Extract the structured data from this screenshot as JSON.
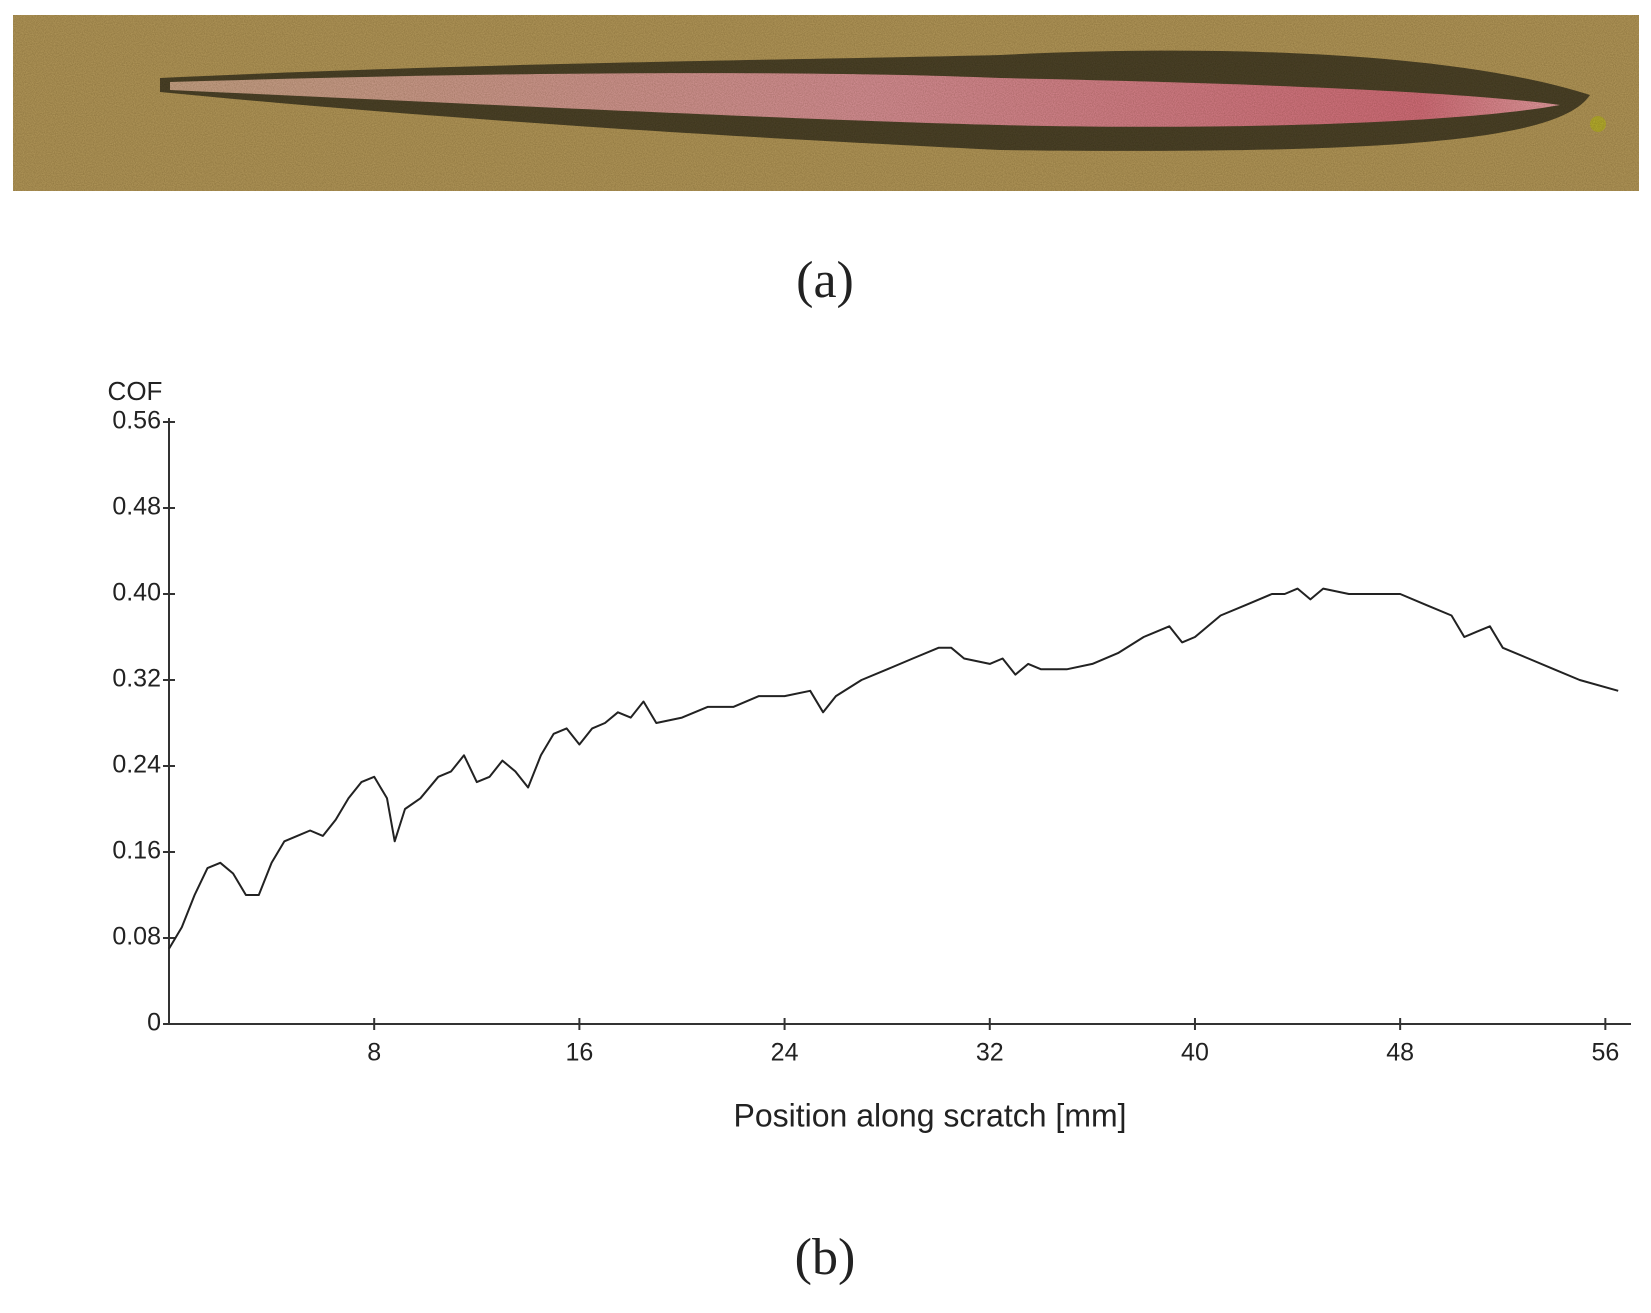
{
  "panel_labels": [
    "(a)",
    "(b)"
  ],
  "chart_data": {
    "type": "line",
    "y_label": "COF",
    "x_label": "Position along scratch [mm]",
    "color": "#222222",
    "x": [
      0,
      0.5,
      1,
      1.5,
      2,
      2.5,
      3,
      3.5,
      4,
      4.5,
      5,
      5.5,
      6,
      6.5,
      7,
      7.5,
      8,
      8.5,
      8.8,
      9.2,
      9.8,
      10.5,
      11,
      11.5,
      12,
      12.5,
      13,
      13.5,
      14,
      14.5,
      15,
      15.5,
      16,
      16.5,
      17,
      17.5,
      18,
      18.5,
      19,
      20,
      21,
      22,
      23,
      24,
      25,
      25.5,
      26,
      27,
      28,
      29,
      30,
      30.5,
      31,
      32,
      32.5,
      33,
      33.5,
      34,
      35,
      36,
      37,
      38,
      39,
      39.5,
      40,
      41,
      42,
      43,
      43.5,
      44,
      44.5,
      45,
      46,
      47,
      48,
      49,
      50,
      50.5,
      51,
      51.5,
      52,
      53,
      54,
      55,
      56.5
    ],
    "values": [
      0.07,
      0.09,
      0.12,
      0.145,
      0.15,
      0.14,
      0.12,
      0.12,
      0.15,
      0.17,
      0.175,
      0.18,
      0.175,
      0.19,
      0.21,
      0.225,
      0.23,
      0.21,
      0.17,
      0.2,
      0.21,
      0.23,
      0.235,
      0.25,
      0.225,
      0.23,
      0.245,
      0.235,
      0.22,
      0.25,
      0.27,
      0.275,
      0.26,
      0.275,
      0.28,
      0.29,
      0.285,
      0.3,
      0.28,
      0.285,
      0.295,
      0.295,
      0.305,
      0.305,
      0.31,
      0.29,
      0.305,
      0.32,
      0.33,
      0.34,
      0.35,
      0.35,
      0.34,
      0.335,
      0.34,
      0.325,
      0.335,
      0.33,
      0.33,
      0.335,
      0.345,
      0.36,
      0.37,
      0.355,
      0.36,
      0.38,
      0.39,
      0.4,
      0.4,
      0.405,
      0.395,
      0.405,
      0.4,
      0.4,
      0.4,
      0.39,
      0.38,
      0.36,
      0.365,
      0.37,
      0.35,
      0.34,
      0.33,
      0.32,
      0.31
    ],
    "xlim": [
      0,
      57
    ],
    "ylim": [
      0,
      0.56
    ],
    "xticks": [
      8,
      16,
      24,
      32,
      40,
      48,
      56
    ],
    "yticks": [
      0,
      0.08,
      0.16,
      0.24,
      0.32,
      {
        "value": 0.4,
        "label": "0.40"
      },
      0.48,
      0.56
    ]
  }
}
